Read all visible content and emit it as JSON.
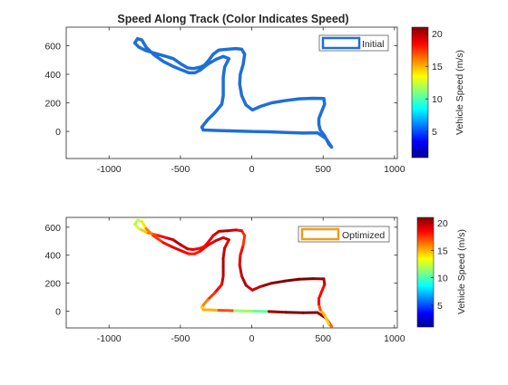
{
  "chart_data": [
    {
      "type": "scatter",
      "title": "Speed Along Track (Color Indicates Speed)",
      "legend": "Initial",
      "legend_color": "#1f6fd6",
      "legend_position": "top-right",
      "line_color": "#1f6fd6",
      "colorbar_label": "Vehicle Speed (m/s)",
      "xlim": [
        -1300,
        1020
      ],
      "ylim": [
        -190,
        730
      ],
      "xticks": [
        -1000,
        -500,
        0,
        500,
        1000
      ],
      "yticks": [
        0,
        200,
        400,
        600
      ],
      "cticks": [
        5,
        10,
        15,
        20
      ],
      "clim": [
        1,
        21
      ],
      "grid": false
    },
    {
      "type": "scatter",
      "title": "",
      "legend": "Optimized",
      "legend_color": "#f39c12",
      "legend_position": "top-right",
      "colorbar_label": "Vehicle Speed (m/s)",
      "xlim": [
        -1300,
        1020
      ],
      "ylim": [
        -120,
        670
      ],
      "xticks": [
        -1000,
        -500,
        0,
        500,
        1000
      ],
      "yticks": [
        0,
        200,
        400,
        600
      ],
      "cticks": [
        5,
        10,
        15,
        20
      ],
      "clim": [
        1,
        21
      ],
      "grid": false
    }
  ],
  "track_points": [
    [
      0,
      0
    ],
    [
      120,
      -3
    ],
    [
      240,
      -8
    ],
    [
      360,
      -12
    ],
    [
      460,
      -10
    ],
    [
      520,
      -50
    ],
    [
      560,
      -110
    ],
    [
      540,
      -90
    ],
    [
      510,
      -30
    ],
    [
      480,
      10
    ],
    [
      470,
      50
    ],
    [
      470,
      90
    ],
    [
      490,
      140
    ],
    [
      510,
      190
    ],
    [
      505,
      230
    ],
    [
      430,
      232
    ],
    [
      330,
      228
    ],
    [
      230,
      215
    ],
    [
      140,
      200
    ],
    [
      60,
      175
    ],
    [
      5,
      150
    ],
    [
      -40,
      185
    ],
    [
      -70,
      250
    ],
    [
      -85,
      330
    ],
    [
      -80,
      400
    ],
    [
      -60,
      470
    ],
    [
      -50,
      540
    ],
    [
      -70,
      575
    ],
    [
      -110,
      580
    ],
    [
      -170,
      575
    ],
    [
      -230,
      570
    ],
    [
      -270,
      540
    ],
    [
      -300,
      500
    ],
    [
      -330,
      465
    ],
    [
      -360,
      450
    ],
    [
      -410,
      440
    ],
    [
      -450,
      445
    ],
    [
      -500,
      475
    ],
    [
      -550,
      510
    ],
    [
      -600,
      525
    ],
    [
      -670,
      545
    ],
    [
      -740,
      565
    ],
    [
      -790,
      590
    ],
    [
      -820,
      620
    ],
    [
      -800,
      650
    ],
    [
      -770,
      640
    ],
    [
      -740,
      590
    ],
    [
      -690,
      540
    ],
    [
      -620,
      490
    ],
    [
      -560,
      460
    ],
    [
      -490,
      430
    ],
    [
      -440,
      410
    ],
    [
      -400,
      410
    ],
    [
      -360,
      430
    ],
    [
      -310,
      470
    ],
    [
      -250,
      505
    ],
    [
      -200,
      525
    ],
    [
      -160,
      510
    ],
    [
      -190,
      450
    ],
    [
      -200,
      380
    ],
    [
      -200,
      320
    ],
    [
      -200,
      250
    ],
    [
      -210,
      190
    ],
    [
      -260,
      130
    ],
    [
      -310,
      80
    ],
    [
      -350,
      30
    ],
    [
      -340,
      10
    ],
    [
      -230,
      6
    ],
    [
      -120,
      3
    ],
    [
      0,
      0
    ]
  ],
  "optimized_speeds": [
    1,
    20,
    21,
    21,
    21,
    20,
    18,
    15,
    14,
    16,
    18,
    19,
    18,
    19,
    20,
    21,
    21,
    21,
    21,
    20,
    19,
    20,
    20,
    19,
    19,
    18,
    17,
    18,
    19,
    20,
    20,
    19,
    19,
    18,
    18,
    19,
    19,
    20,
    20,
    19,
    18,
    16,
    13,
    12,
    12,
    13,
    15,
    17,
    18,
    19,
    19,
    18,
    18,
    18,
    19,
    19,
    20,
    19,
    19,
    20,
    20,
    20,
    19,
    18,
    17,
    15,
    14,
    16,
    18,
    5
  ]
}
